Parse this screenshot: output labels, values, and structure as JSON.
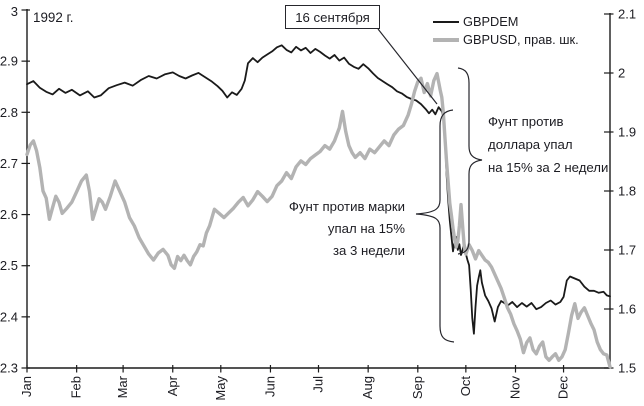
{
  "chart_data": {
    "type": "line",
    "year_label": "1992 г.",
    "event_callout": "16 сентября",
    "x_tick_labels": [
      "Jan",
      "Feb",
      "Mar",
      "Apr",
      "May",
      "Jun",
      "Jul",
      "Aug",
      "Sep",
      "Oct",
      "Nov",
      "Dec"
    ],
    "x_tick_doys": [
      1,
      32,
      61,
      92,
      122,
      153,
      183,
      214,
      245,
      275,
      306,
      336
    ],
    "left_axis": {
      "tick_labels": [
        "3",
        "2.9",
        "2.8",
        "2.7",
        "2.6",
        "2.5",
        "2.4",
        "2.3"
      ],
      "tick_values": [
        3,
        2.9,
        2.8,
        2.7,
        2.6,
        2.5,
        2.4,
        2.3
      ],
      "range": [
        2.3,
        3.0
      ]
    },
    "right_axis": {
      "tick_labels": [
        "2.1",
        "2",
        "1.9",
        "1.8",
        "1.7",
        "1.6",
        "1.5"
      ],
      "tick_values": [
        2.1,
        2,
        1.9,
        1.8,
        1.7,
        1.6,
        1.5
      ],
      "range": [
        1.5,
        2.1
      ]
    },
    "series": [
      {
        "name": "GBPDEM",
        "axis": "left",
        "color": "#1a1a1a",
        "width": 1.8,
        "points": [
          [
            1,
            2.855
          ],
          [
            5,
            2.861
          ],
          [
            9,
            2.848
          ],
          [
            13,
            2.84
          ],
          [
            17,
            2.835
          ],
          [
            21,
            2.846
          ],
          [
            25,
            2.838
          ],
          [
            29,
            2.844
          ],
          [
            34,
            2.833
          ],
          [
            39,
            2.841
          ],
          [
            43,
            2.829
          ],
          [
            47,
            2.833
          ],
          [
            52,
            2.847
          ],
          [
            57,
            2.853
          ],
          [
            62,
            2.858
          ],
          [
            67,
            2.852
          ],
          [
            72,
            2.863
          ],
          [
            77,
            2.871
          ],
          [
            82,
            2.866
          ],
          [
            87,
            2.874
          ],
          [
            92,
            2.878
          ],
          [
            96,
            2.871
          ],
          [
            100,
            2.866
          ],
          [
            104,
            2.872
          ],
          [
            108,
            2.877
          ],
          [
            112,
            2.869
          ],
          [
            116,
            2.861
          ],
          [
            120,
            2.851
          ],
          [
            123,
            2.842
          ],
          [
            126,
            2.829
          ],
          [
            129,
            2.839
          ],
          [
            132,
            2.834
          ],
          [
            135,
            2.846
          ],
          [
            137,
            2.862
          ],
          [
            139,
            2.896
          ],
          [
            142,
            2.906
          ],
          [
            145,
            2.898
          ],
          [
            148,
            2.907
          ],
          [
            151,
            2.913
          ],
          [
            154,
            2.919
          ],
          [
            157,
            2.927
          ],
          [
            160,
            2.931
          ],
          [
            163,
            2.922
          ],
          [
            166,
            2.917
          ],
          [
            169,
            2.928
          ],
          [
            172,
            2.921
          ],
          [
            175,
            2.926
          ],
          [
            178,
            2.916
          ],
          [
            181,
            2.924
          ],
          [
            184,
            2.918
          ],
          [
            187,
            2.911
          ],
          [
            190,
            2.905
          ],
          [
            193,
            2.912
          ],
          [
            196,
            2.901
          ],
          [
            199,
            2.907
          ],
          [
            202,
            2.895
          ],
          [
            205,
            2.889
          ],
          [
            208,
            2.885
          ],
          [
            211,
            2.894
          ],
          [
            214,
            2.886
          ],
          [
            217,
            2.876
          ],
          [
            220,
            2.867
          ],
          [
            223,
            2.861
          ],
          [
            226,
            2.855
          ],
          [
            229,
            2.849
          ],
          [
            232,
            2.841
          ],
          [
            235,
            2.837
          ],
          [
            238,
            2.83
          ],
          [
            241,
            2.826
          ],
          [
            244,
            2.823
          ],
          [
            247,
            2.816
          ],
          [
            250,
            2.806
          ],
          [
            252,
            2.798
          ],
          [
            254,
            2.805
          ],
          [
            256,
            2.796
          ],
          [
            258,
            2.81
          ],
          [
            260,
            2.802
          ],
          [
            261,
            2.791
          ],
          [
            262,
            2.748
          ],
          [
            263,
            2.678
          ],
          [
            264,
            2.628
          ],
          [
            265,
            2.588
          ],
          [
            266,
            2.558
          ],
          [
            267,
            2.528
          ],
          [
            268,
            2.547
          ],
          [
            269,
            2.556
          ],
          [
            270,
            2.531
          ],
          [
            271,
            2.542
          ],
          [
            272,
            2.521
          ],
          [
            273,
            2.531
          ],
          [
            274,
            2.547
          ],
          [
            275,
            2.523
          ],
          [
            276,
            2.511
          ],
          [
            277,
            2.501
          ],
          [
            278,
            2.454
          ],
          [
            279,
            2.397
          ],
          [
            280,
            2.367
          ],
          [
            281,
            2.419
          ],
          [
            282,
            2.461
          ],
          [
            283,
            2.477
          ],
          [
            284,
            2.491
          ],
          [
            285,
            2.467
          ],
          [
            287,
            2.442
          ],
          [
            289,
            2.431
          ],
          [
            291,
            2.417
          ],
          [
            293,
            2.391
          ],
          [
            295,
            2.419
          ],
          [
            297,
            2.431
          ],
          [
            299,
            2.427
          ],
          [
            301,
            2.422
          ],
          [
            304,
            2.429
          ],
          [
            307,
            2.419
          ],
          [
            310,
            2.427
          ],
          [
            313,
            2.42
          ],
          [
            316,
            2.427
          ],
          [
            319,
            2.415
          ],
          [
            322,
            2.419
          ],
          [
            325,
            2.427
          ],
          [
            328,
            2.432
          ],
          [
            331,
            2.424
          ],
          [
            334,
            2.429
          ],
          [
            336,
            2.439
          ],
          [
            338,
            2.471
          ],
          [
            340,
            2.479
          ],
          [
            343,
            2.475
          ],
          [
            346,
            2.471
          ],
          [
            349,
            2.459
          ],
          [
            352,
            2.451
          ],
          [
            355,
            2.451
          ],
          [
            358,
            2.447
          ],
          [
            361,
            2.449
          ],
          [
            363,
            2.442
          ],
          [
            365,
            2.44
          ]
        ]
      },
      {
        "name": "GBPUSD, прав. шк.",
        "axis": "right",
        "color": "#b3b3b3",
        "width": 3.4,
        "points": [
          [
            1,
            1.862
          ],
          [
            3,
            1.878
          ],
          [
            5,
            1.885
          ],
          [
            7,
            1.868
          ],
          [
            9,
            1.84
          ],
          [
            11,
            1.8
          ],
          [
            13,
            1.788
          ],
          [
            15,
            1.752
          ],
          [
            17,
            1.772
          ],
          [
            19,
            1.791
          ],
          [
            21,
            1.781
          ],
          [
            23,
            1.762
          ],
          [
            26,
            1.771
          ],
          [
            29,
            1.781
          ],
          [
            32,
            1.799
          ],
          [
            35,
            1.817
          ],
          [
            38,
            1.827
          ],
          [
            40,
            1.799
          ],
          [
            42,
            1.752
          ],
          [
            44,
            1.769
          ],
          [
            46,
            1.787
          ],
          [
            48,
            1.781
          ],
          [
            50,
            1.769
          ],
          [
            53,
            1.791
          ],
          [
            56,
            1.817
          ],
          [
            59,
            1.799
          ],
          [
            62,
            1.781
          ],
          [
            65,
            1.755
          ],
          [
            68,
            1.741
          ],
          [
            71,
            1.721
          ],
          [
            74,
            1.707
          ],
          [
            77,
            1.693
          ],
          [
            80,
            1.683
          ],
          [
            83,
            1.695
          ],
          [
            86,
            1.701
          ],
          [
            89,
            1.691
          ],
          [
            91,
            1.675
          ],
          [
            93,
            1.669
          ],
          [
            95,
            1.689
          ],
          [
            97,
            1.682
          ],
          [
            99,
            1.691
          ],
          [
            101,
            1.682
          ],
          [
            103,
            1.675
          ],
          [
            105,
            1.689
          ],
          [
            107,
            1.697
          ],
          [
            109,
            1.709
          ],
          [
            111,
            1.707
          ],
          [
            113,
            1.729
          ],
          [
            115,
            1.741
          ],
          [
            118,
            1.769
          ],
          [
            121,
            1.762
          ],
          [
            124,
            1.755
          ],
          [
            127,
            1.763
          ],
          [
            130,
            1.771
          ],
          [
            133,
            1.781
          ],
          [
            136,
            1.789
          ],
          [
            139,
            1.775
          ],
          [
            142,
            1.785
          ],
          [
            145,
            1.799
          ],
          [
            148,
            1.791
          ],
          [
            151,
            1.782
          ],
          [
            154,
            1.791
          ],
          [
            157,
            1.809
          ],
          [
            160,
            1.817
          ],
          [
            163,
            1.831
          ],
          [
            166,
            1.821
          ],
          [
            169,
            1.841
          ],
          [
            172,
            1.851
          ],
          [
            175,
            1.845
          ],
          [
            178,
            1.855
          ],
          [
            181,
            1.861
          ],
          [
            184,
            1.867
          ],
          [
            187,
            1.877
          ],
          [
            190,
            1.871
          ],
          [
            193,
            1.885
          ],
          [
            196,
            1.907
          ],
          [
            198,
            1.935
          ],
          [
            200,
            1.901
          ],
          [
            202,
            1.877
          ],
          [
            204,
            1.865
          ],
          [
            206,
            1.857
          ],
          [
            209,
            1.865
          ],
          [
            212,
            1.855
          ],
          [
            215,
            1.871
          ],
          [
            218,
            1.865
          ],
          [
            221,
            1.875
          ],
          [
            224,
            1.885
          ],
          [
            227,
            1.877
          ],
          [
            230,
            1.895
          ],
          [
            233,
            1.905
          ],
          [
            236,
            1.911
          ],
          [
            239,
            1.929
          ],
          [
            241,
            1.947
          ],
          [
            243,
            1.969
          ],
          [
            245,
            1.985
          ],
          [
            247,
            1.991
          ],
          [
            249,
            1.967
          ],
          [
            251,
            1.982
          ],
          [
            253,
            1.961
          ],
          [
            255,
            1.987
          ],
          [
            257,
            1.999
          ],
          [
            258,
            1.985
          ],
          [
            259,
            1.971
          ],
          [
            260,
            1.959
          ],
          [
            261,
            1.931
          ],
          [
            262,
            1.889
          ],
          [
            263,
            1.849
          ],
          [
            264,
            1.814
          ],
          [
            265,
            1.779
          ],
          [
            266,
            1.759
          ],
          [
            267,
            1.737
          ],
          [
            268,
            1.719
          ],
          [
            269,
            1.705
          ],
          [
            270,
            1.715
          ],
          [
            271,
            1.741
          ],
          [
            272,
            1.777
          ],
          [
            273,
            1.741
          ],
          [
            274,
            1.705
          ],
          [
            275,
            1.693
          ],
          [
            277,
            1.709
          ],
          [
            279,
            1.699
          ],
          [
            281,
            1.685
          ],
          [
            283,
            1.699
          ],
          [
            285,
            1.691
          ],
          [
            287,
            1.683
          ],
          [
            289,
            1.679
          ],
          [
            291,
            1.671
          ],
          [
            293,
            1.659
          ],
          [
            295,
            1.647
          ],
          [
            297,
            1.635
          ],
          [
            299,
            1.619
          ],
          [
            301,
            1.602
          ],
          [
            303,
            1.591
          ],
          [
            305,
            1.575
          ],
          [
            307,
            1.563
          ],
          [
            309,
            1.549
          ],
          [
            311,
            1.526
          ],
          [
            313,
            1.543
          ],
          [
            315,
            1.551
          ],
          [
            317,
            1.531
          ],
          [
            319,
            1.524
          ],
          [
            321,
            1.537
          ],
          [
            323,
            1.544
          ],
          [
            325,
            1.519
          ],
          [
            327,
            1.513
          ],
          [
            329,
            1.519
          ],
          [
            331,
            1.524
          ],
          [
            333,
            1.513
          ],
          [
            335,
            1.519
          ],
          [
            337,
            1.531
          ],
          [
            339,
            1.559
          ],
          [
            341,
            1.589
          ],
          [
            343,
            1.609
          ],
          [
            345,
            1.584
          ],
          [
            347,
            1.595
          ],
          [
            349,
            1.602
          ],
          [
            351,
            1.589
          ],
          [
            353,
            1.576
          ],
          [
            355,
            1.565
          ],
          [
            357,
            1.544
          ],
          [
            359,
            1.531
          ],
          [
            361,
            1.524
          ],
          [
            363,
            1.522
          ],
          [
            365,
            1.502
          ]
        ]
      }
    ],
    "annotations": [
      {
        "id": "dem-drop",
        "text": "Фунт против марки\nупал на 15%\nза 3 недели"
      },
      {
        "id": "usd-drop",
        "text": "Фунт против\nдоллара упал\nна 15% за 2 недели"
      }
    ]
  }
}
